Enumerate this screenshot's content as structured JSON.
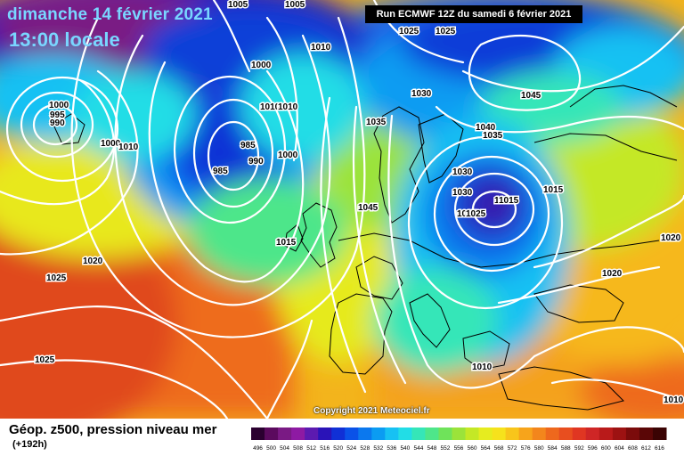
{
  "header": {
    "date": "dimanche 14 février 2021",
    "time": "13:00 locale",
    "run": "Run ECMWF 12Z du samedi 6 février 2021"
  },
  "map": {
    "copyright": "Copyright 2021 Meteociel.fr",
    "isobar_labels": [
      "1005",
      "1005",
      "1025",
      "1025",
      "1030",
      "1000",
      "1010",
      "1000",
      "995",
      "990",
      "1000",
      "1010",
      "1010",
      "1010",
      "1000",
      "990",
      "985",
      "985",
      "1035",
      "1030",
      "1040",
      "1035",
      "1045",
      "1030",
      "1025",
      "1020",
      "1015",
      "1025",
      "1015",
      "1045",
      "1015",
      "1020",
      "1020",
      "1025",
      "1020",
      "1025",
      "1010",
      "1010"
    ]
  },
  "legend": {
    "title": "Géop. z500, pression niveau mer",
    "subtitle": "(+192h)",
    "scale_values": [
      "496",
      "500",
      "504",
      "508",
      "512",
      "516",
      "520",
      "524",
      "528",
      "532",
      "536",
      "540",
      "544",
      "548",
      "552",
      "556",
      "560",
      "564",
      "568",
      "572",
      "576",
      "580",
      "584",
      "588",
      "592",
      "596",
      "600",
      "604",
      "608",
      "612",
      "616"
    ],
    "scale_colors": [
      "#2b0030",
      "#5b0a5e",
      "#7a1a84",
      "#8e1aa3",
      "#5c1ab0",
      "#2a13b8",
      "#1030d6",
      "#0a52e8",
      "#0b78ee",
      "#0b9cf2",
      "#17c1f3",
      "#22dde6",
      "#35e6b8",
      "#4ee68a",
      "#6fe35a",
      "#9be33a",
      "#c4e826",
      "#e6ec1f",
      "#f6e21c",
      "#f8c51b",
      "#f7a41b",
      "#f3861c",
      "#ee681d",
      "#e84e1f",
      "#e03622",
      "#cf2626",
      "#b91a1a",
      "#9d1212",
      "#7b0b0b",
      "#5a0606",
      "#3a0303"
    ]
  }
}
